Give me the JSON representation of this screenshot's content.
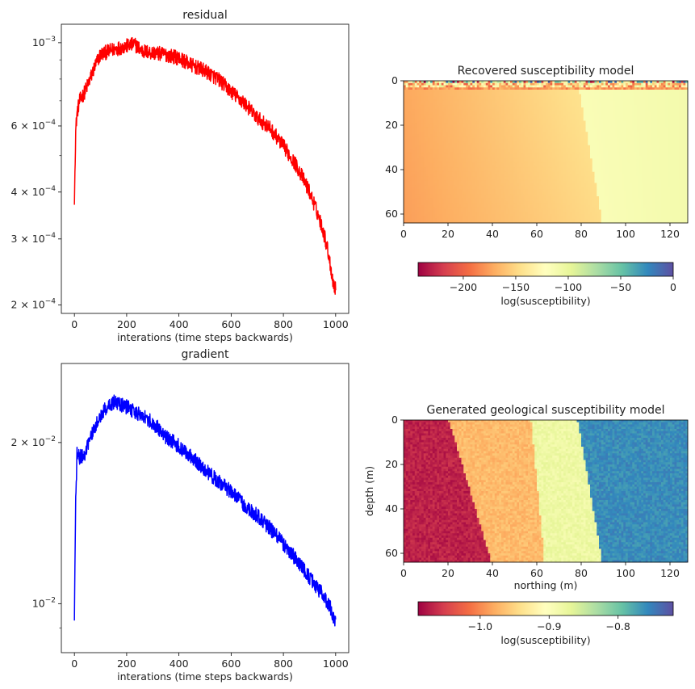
{
  "chart_data": [
    {
      "type": "line",
      "title": "residual",
      "xlabel": "interations (time steps backwards)",
      "ylabel": "",
      "yscale": "log",
      "xlim": [
        -50,
        1050
      ],
      "ylim": [
        0.00019,
        0.00112
      ],
      "xticks": [
        0,
        200,
        400,
        600,
        800,
        1000
      ],
      "xtick_labels": [
        "0",
        "200",
        "400",
        "600",
        "800",
        "1000"
      ],
      "yticks": [
        0.001,
        0.0006,
        0.0004,
        0.0003,
        0.0002
      ],
      "ytick_labels": [
        {
          "base": "10",
          "exp": "−3"
        },
        {
          "base": "6 × 10",
          "exp": "−4"
        },
        {
          "base": "4 × 10",
          "exp": "−4"
        },
        {
          "base": "3 × 10",
          "exp": "−4"
        },
        {
          "base": "2 × 10",
          "exp": "−4"
        }
      ],
      "minor_yticks": [
        0.0009,
        0.0008,
        0.0007,
        0.0005
      ],
      "grid": false,
      "color": "#ff0000",
      "series": [
        {
          "x": [
            0,
            5,
            10,
            20,
            40,
            60,
            80,
            100,
            150,
            200,
            230,
            260,
            300,
            350,
            400,
            450,
            500,
            550,
            600,
            650,
            700,
            750,
            800,
            850,
            900,
            950,
            970,
            990,
            1000
          ],
          "values": [
            0.00037,
            0.00058,
            0.00065,
            0.0007,
            0.00074,
            0.0008,
            0.00087,
            0.00093,
            0.00096,
            0.00098,
            0.00099,
            0.00095,
            0.00094,
            0.00093,
            0.00091,
            0.00087,
            0.00084,
            0.0008,
            0.00074,
            0.00069,
            0.00063,
            0.00059,
            0.00053,
            0.00047,
            0.0004,
            0.00032,
            0.00028,
            0.00023,
            0.00022
          ],
          "noise": 0.045
        }
      ]
    },
    {
      "type": "line",
      "title": "gradient",
      "xlabel": "interations (time steps backwards)",
      "ylabel": "",
      "yscale": "log",
      "xlim": [
        -50,
        1050
      ],
      "ylim": [
        0.0081,
        0.0281
      ],
      "xticks": [
        0,
        200,
        400,
        600,
        800,
        1000
      ],
      "xtick_labels": [
        "0",
        "200",
        "400",
        "600",
        "800",
        "1000"
      ],
      "yticks": [
        0.02,
        0.01
      ],
      "ytick_labels": [
        {
          "base": "2 × 10",
          "exp": "−2"
        },
        {
          "base": "10",
          "exp": "−2"
        }
      ],
      "minor_yticks": [
        0.009
      ],
      "grid": false,
      "color": "#0000ff",
      "series": [
        {
          "x": [
            0,
            5,
            10,
            20,
            40,
            60,
            80,
            100,
            130,
            150,
            200,
            250,
            300,
            350,
            400,
            450,
            500,
            550,
            600,
            650,
            700,
            750,
            800,
            850,
            900,
            950,
            980,
            1000
          ],
          "values": [
            0.0093,
            0.0155,
            0.019,
            0.0188,
            0.019,
            0.0203,
            0.0213,
            0.0225,
            0.0235,
            0.0238,
            0.0233,
            0.0226,
            0.0218,
            0.0205,
            0.0197,
            0.0188,
            0.0178,
            0.0169,
            0.0162,
            0.0153,
            0.0146,
            0.0138,
            0.0129,
            0.0121,
            0.0112,
            0.0104,
            0.0098,
            0.0092
          ],
          "noise": 0.032
        }
      ]
    },
    {
      "type": "heatmap",
      "title": "Recovered susceptibility model",
      "xlabel": "",
      "ylabel": "",
      "xlim": [
        0,
        128
      ],
      "ylim": [
        64,
        0
      ],
      "xticks": [
        0,
        20,
        40,
        60,
        80,
        100,
        120
      ],
      "yticks": [
        0,
        20,
        40,
        60
      ],
      "colormap": "Spectral",
      "colorbar": {
        "label": "log(susceptibility)",
        "range": [
          -243,
          0
        ],
        "ticks": [
          -200,
          -150,
          -100,
          -50,
          0
        ],
        "tick_labels": [
          "−200",
          "−150",
          "−100",
          "−50",
          "0"
        ]
      },
      "structure": {
        "top_band": "strongly varying values in the top ~4 rows (red to blue)",
        "left_region_value": -172,
        "right_region_value": -110,
        "boundary_x_top": 78,
        "boundary_x_bottom": 89,
        "surface_layer_value": -130
      }
    },
    {
      "type": "heatmap",
      "title": "Generated geological susceptibility model",
      "xlabel": "northing (m)",
      "ylabel": "depth (m)",
      "xlim": [
        0,
        128
      ],
      "ylim": [
        64,
        0
      ],
      "xticks": [
        0,
        20,
        40,
        60,
        80,
        100,
        120
      ],
      "yticks": [
        0,
        20,
        40,
        60
      ],
      "colormap": "Spectral",
      "colorbar": {
        "label": "log(susceptibility)",
        "range": [
          -1.09,
          -0.72
        ],
        "ticks": [
          -1.0,
          -0.9,
          -0.8
        ],
        "tick_labels": [
          "−1.0",
          "−0.9",
          "−0.8"
        ]
      },
      "layers": [
        {
          "value": -1.07,
          "x_top": 0,
          "x_bottom": 0
        },
        {
          "value": -0.97,
          "x_top": 20,
          "x_bottom": 39
        },
        {
          "value": -0.88,
          "x_top": 57,
          "x_bottom": 63
        },
        {
          "value": -0.76,
          "x_top": 78,
          "x_bottom": 89
        }
      ],
      "noise": 0.012
    }
  ]
}
